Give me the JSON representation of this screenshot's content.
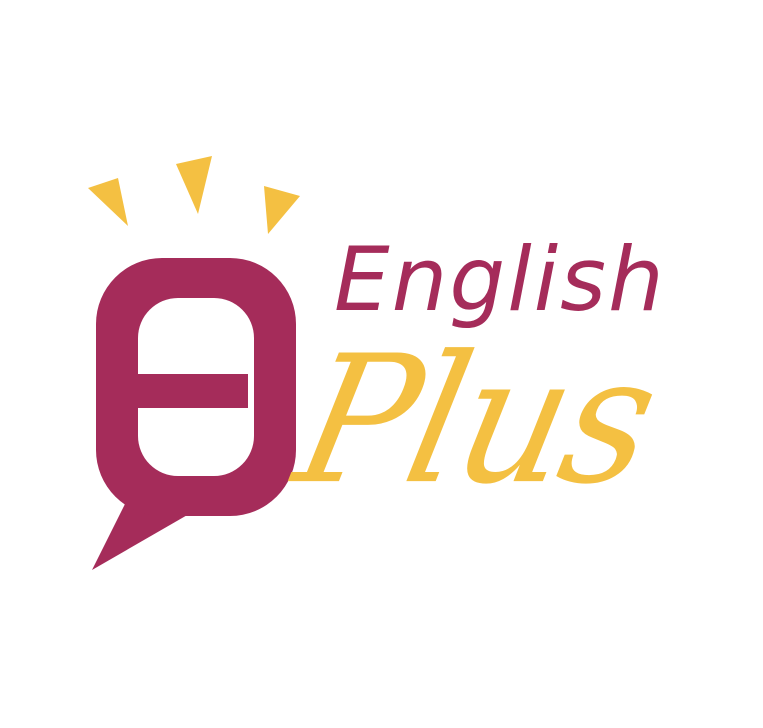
{
  "brand": {
    "word_primary": "English",
    "word_secondary": "Plus"
  },
  "colors": {
    "primary": "#a52c5a",
    "accent": "#f4c042",
    "background": "#ffffff"
  },
  "icons": {
    "mark": "speech-bubble-e-icon",
    "rays": "light-rays-icon"
  }
}
